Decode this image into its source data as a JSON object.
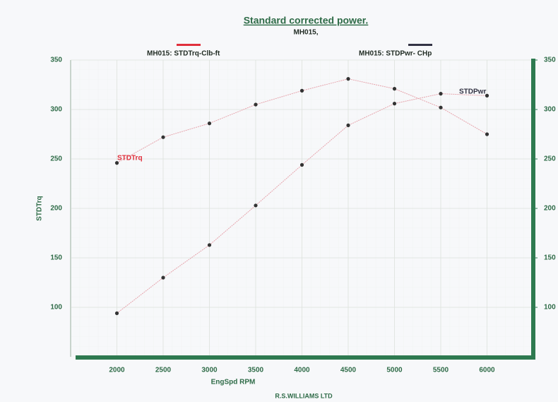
{
  "chart_data": {
    "type": "line",
    "title": "Standard corrected power.",
    "subtitle": "MH015,",
    "x_label": "EngSpd  RPM",
    "y_label": "STDTrq",
    "footer": "R.S.WILLIAMS LTD",
    "x": [
      2000,
      2500,
      3000,
      3500,
      4000,
      4500,
      5000,
      5500,
      6000
    ],
    "series": [
      {
        "name": "MH015: STDTrq-Clb-ft",
        "label": "STDTrq",
        "color": "#e0303c",
        "values": [
          246,
          272,
          286,
          305,
          319,
          331,
          321,
          302,
          275
        ]
      },
      {
        "name": "MH015: STDPwr- CHp",
        "label": "STDPwr",
        "color": "#333344",
        "axis": "y2",
        "values": [
          94,
          130,
          163,
          203,
          244,
          284,
          306,
          316,
          314
        ]
      }
    ],
    "line_color": "#e6a4ac",
    "marker_color": "#333333",
    "axis_color": "#2e7a50",
    "xlim": [
      1500,
      6500
    ],
    "xticks": [
      2000,
      2500,
      3000,
      3500,
      4000,
      4500,
      5000,
      5500,
      6000
    ],
    "ylim": [
      50,
      350
    ],
    "yticks": [
      100,
      150,
      200,
      250,
      300,
      350
    ],
    "y2lim": [
      50,
      350
    ],
    "y2ticks": [
      100,
      150,
      200,
      250,
      300,
      350
    ],
    "grid": true
  }
}
